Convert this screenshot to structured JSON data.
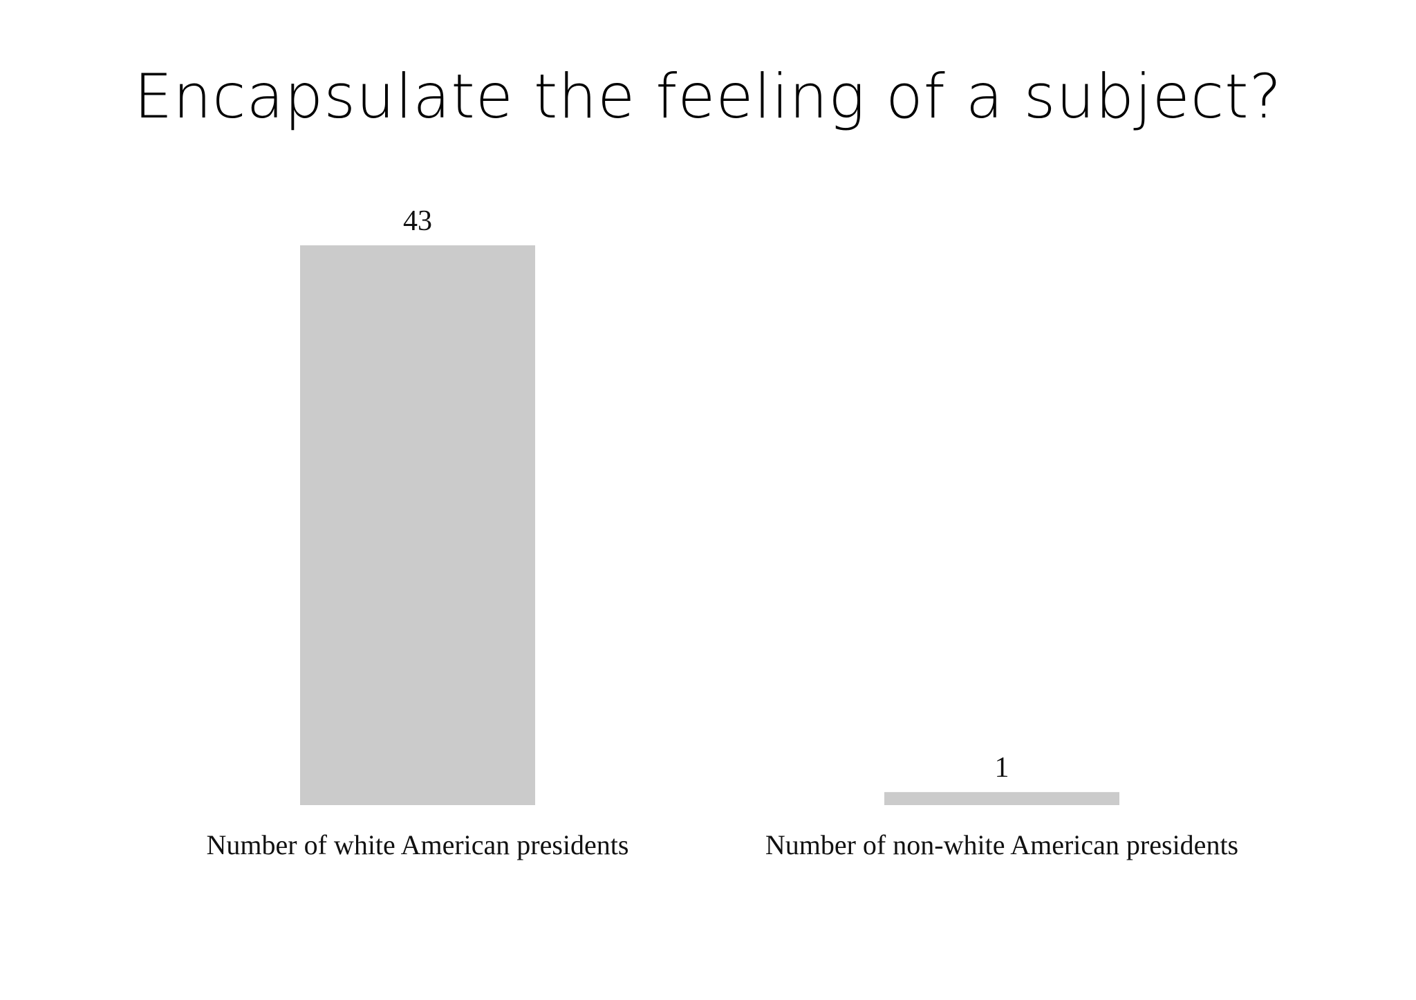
{
  "title": "Encapsulate the feeling of a subject?",
  "chart_data": {
    "type": "bar",
    "title": "Encapsulate the feeling of a subject?",
    "categories": [
      "Number of white American presidents",
      "Number of non-white American presidents"
    ],
    "values": [
      43,
      1
    ],
    "data_labels": [
      "43",
      "1"
    ],
    "xlabel": "",
    "ylabel": "",
    "ylim": [
      0,
      43
    ],
    "grid": false,
    "legend": "none",
    "bar_color": "#cbcbcb"
  }
}
